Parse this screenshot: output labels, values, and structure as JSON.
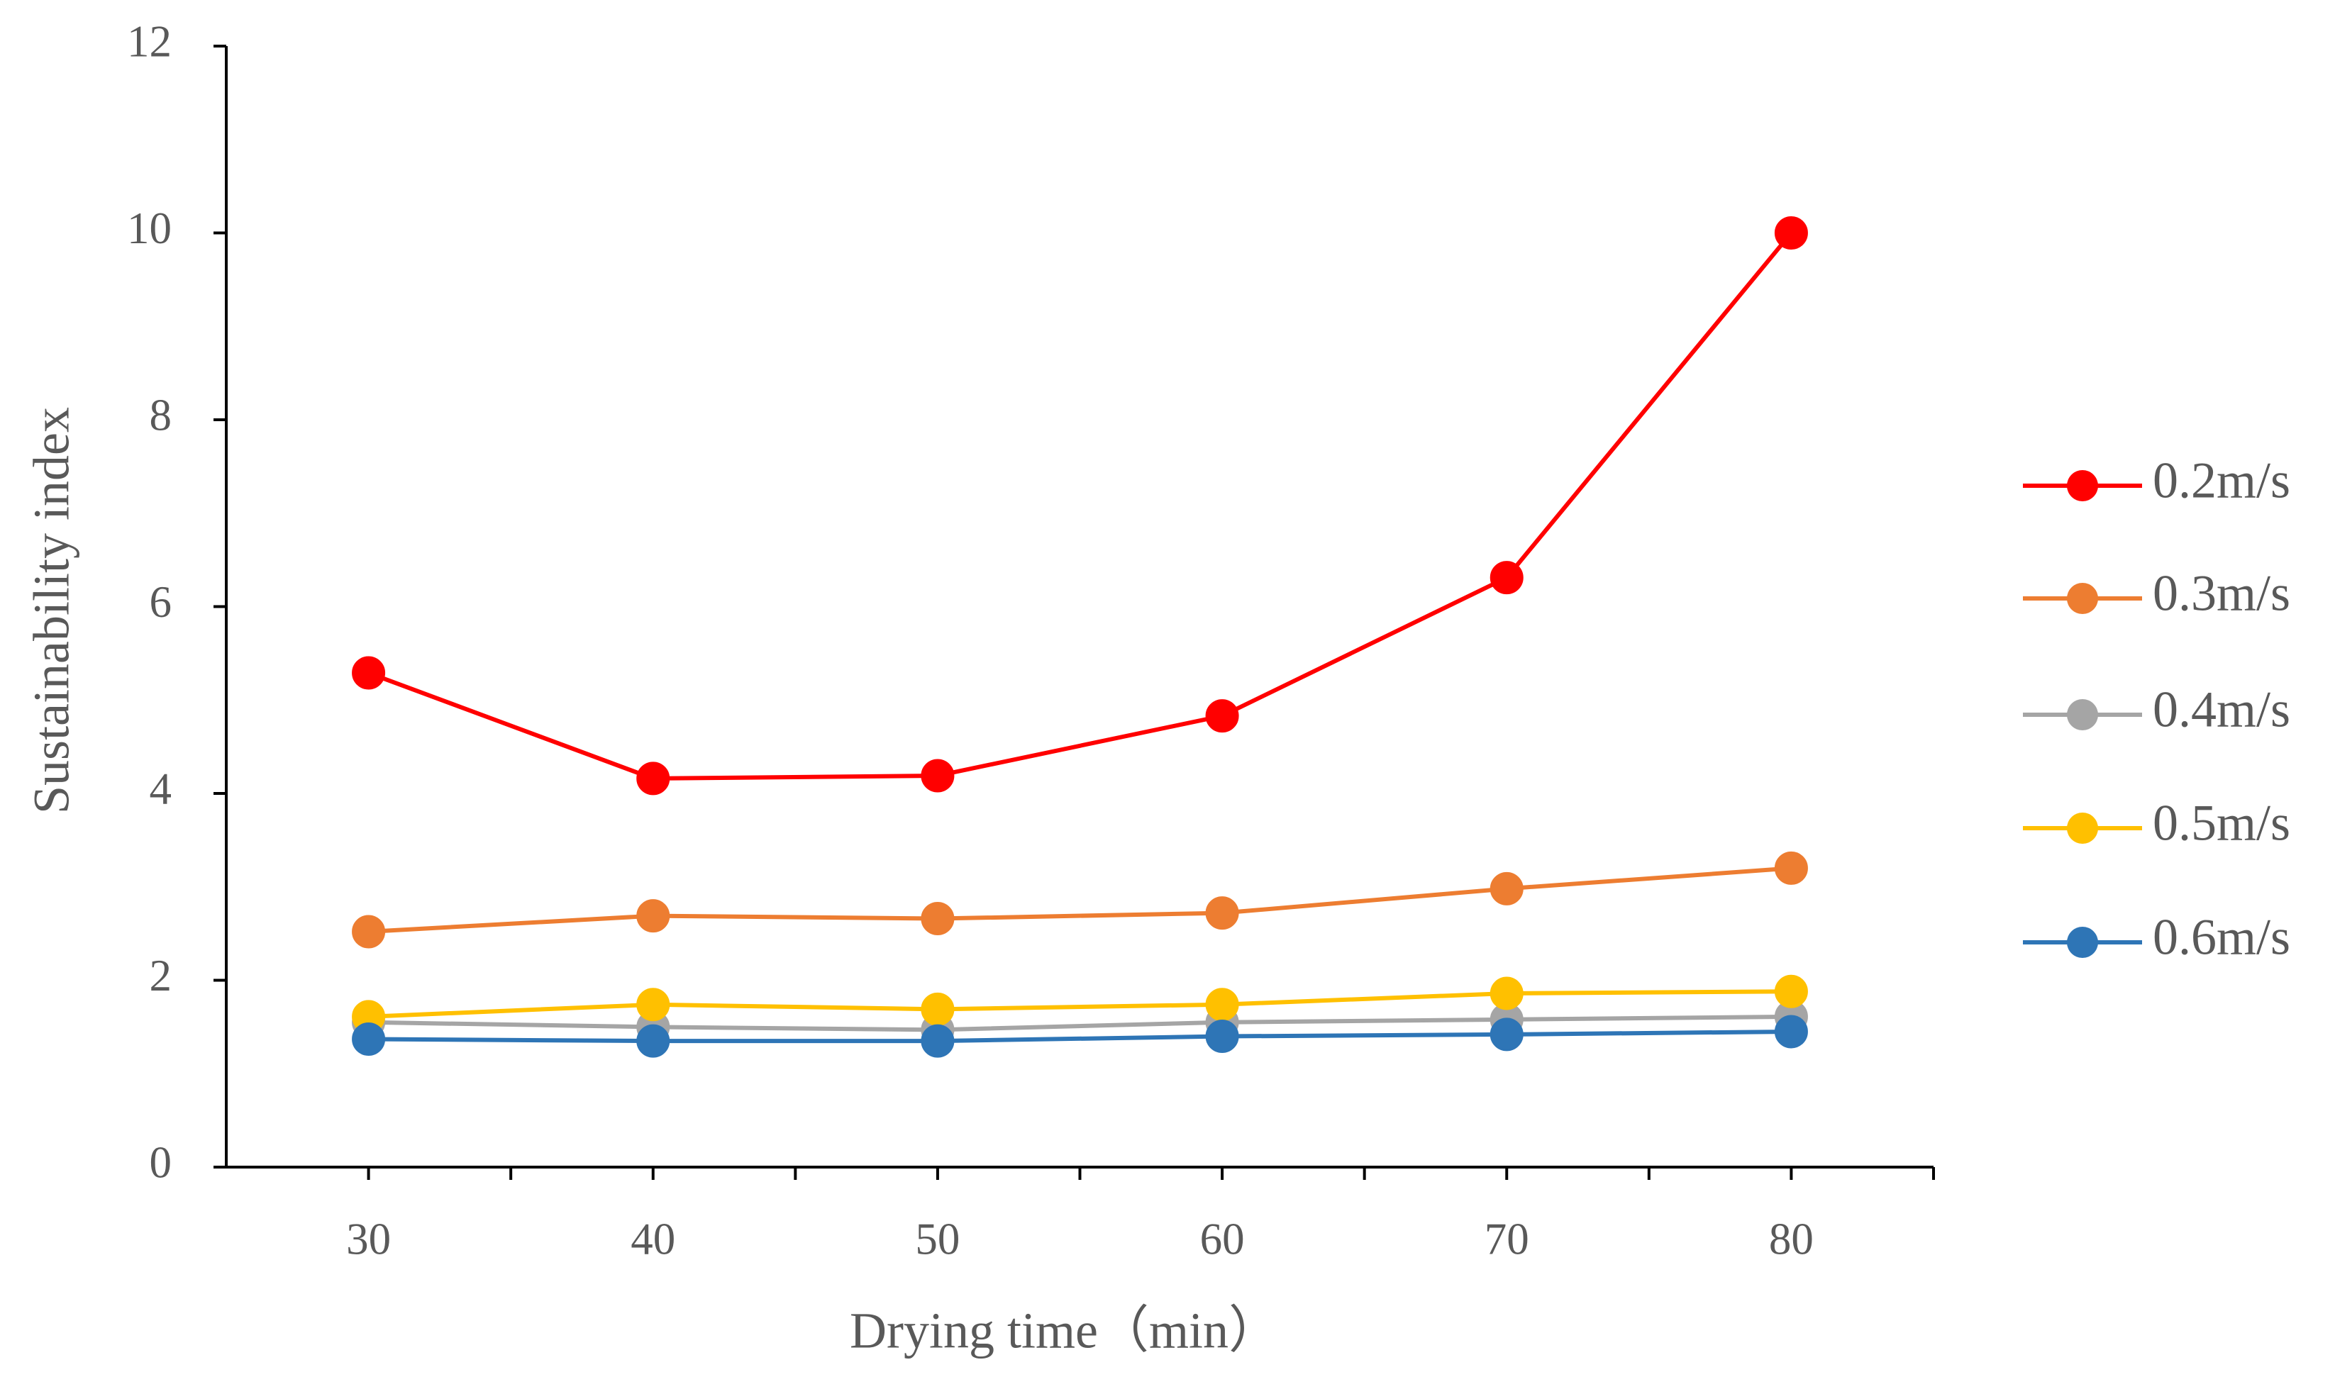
{
  "chart_data": {
    "type": "line",
    "x_label": "Drying time（min）",
    "y_label": "Sustainability index",
    "categories": [
      "30",
      "40",
      "50",
      "60",
      "70",
      "80"
    ],
    "series": [
      {
        "name": "0.2m/s",
        "color": "#ff0000",
        "values": [
          5.29,
          4.16,
          4.19,
          4.83,
          6.31,
          10.0
        ]
      },
      {
        "name": "0.3m/s",
        "color": "#ed7d31",
        "values": [
          2.52,
          2.69,
          2.66,
          2.72,
          2.98,
          3.2
        ]
      },
      {
        "name": "0.4m/s",
        "color": "#a5a5a5",
        "values": [
          1.55,
          1.5,
          1.47,
          1.55,
          1.58,
          1.61
        ]
      },
      {
        "name": "0.5m/s",
        "color": "#ffc000",
        "values": [
          1.61,
          1.74,
          1.69,
          1.74,
          1.86,
          1.88
        ]
      },
      {
        "name": "0.6m/s",
        "color": "#2e75b6",
        "values": [
          1.37,
          1.35,
          1.35,
          1.4,
          1.42,
          1.45
        ]
      }
    ],
    "ylim": [
      0,
      12
    ],
    "yticks": [
      0,
      2,
      4,
      6,
      8,
      10,
      12
    ],
    "grid": false,
    "legend": "right"
  }
}
